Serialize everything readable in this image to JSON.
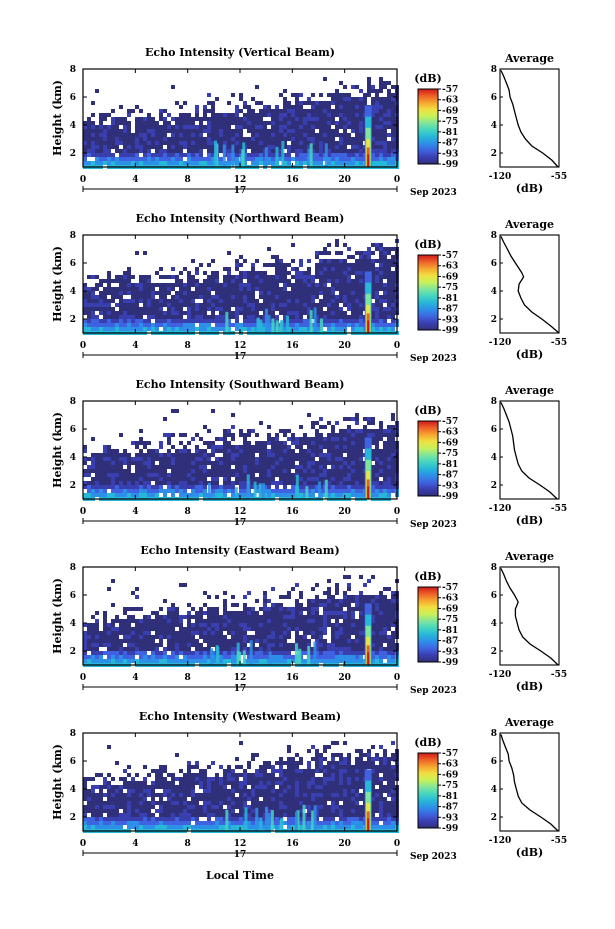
{
  "figure": {
    "xlabel": "Local Time",
    "date_day": "17",
    "month_year": "Sep 2023",
    "colorbar_unit": "(dB)",
    "profile_title": "Average",
    "profile_xlabel": "(dB)"
  },
  "colormap": [
    "#30307a",
    "#3a3fb0",
    "#3f63e0",
    "#2e8fe8",
    "#27b7d8",
    "#45d5c0",
    "#7fe59a",
    "#c8f05a",
    "#f0e040",
    "#f6a630",
    "#ee6028",
    "#cc1a1a"
  ],
  "chart_data": [
    {
      "type": "heatmap",
      "title": "Echo Intensity (Vertical Beam)",
      "ylabel": "Height (km)",
      "xlim": [
        0,
        24
      ],
      "ylim": [
        1,
        8
      ],
      "x_ticks": [
        "0",
        "4",
        "8",
        "12",
        "16",
        "20",
        "0"
      ],
      "y_ticks": [
        "2",
        "4",
        "6",
        "8"
      ],
      "colorbar": {
        "unit": "(dB)",
        "range": [
          -99,
          -57
        ],
        "ticks": [
          "-57",
          "-63",
          "-69",
          "-75",
          "-81",
          "-87",
          "-93",
          "-99"
        ]
      },
      "description_values": {
        "echo_top_km_start": 4.0,
        "echo_top_km_end": 5.8,
        "convective_column_hour": 21.8
      },
      "profile": {
        "title": "Average",
        "xlabel": "(dB)",
        "xlim": [
          -120,
          -55
        ],
        "x_ticks": [
          "-120",
          "-55"
        ],
        "y_ticks": [
          "2",
          "4",
          "6",
          "8"
        ],
        "height_km": [
          1.0,
          1.5,
          2.0,
          2.5,
          3.0,
          3.5,
          4.0,
          4.5,
          5.0,
          5.5,
          6.0,
          6.5,
          7.0,
          7.5,
          7.9
        ],
        "intensity_db": [
          -56,
          -63,
          -73,
          -85,
          -92,
          -97,
          -100,
          -102,
          -104,
          -106,
          -109,
          -110,
          -113,
          -116,
          -119
        ]
      }
    },
    {
      "type": "heatmap",
      "title": "Echo Intensity (Northward Beam)",
      "ylabel": "Height (km)",
      "xlim": [
        0,
        24
      ],
      "ylim": [
        1,
        8
      ],
      "x_ticks": [
        "0",
        "4",
        "8",
        "12",
        "16",
        "20",
        "0"
      ],
      "y_ticks": [
        "2",
        "4",
        "6",
        "8"
      ],
      "colorbar": {
        "unit": "(dB)",
        "range": [
          -99,
          -57
        ],
        "ticks": [
          "-57",
          "-63",
          "-69",
          "-75",
          "-81",
          "-87",
          "-93",
          "-99"
        ]
      },
      "description_values": {
        "echo_top_km_start": 4.2,
        "echo_top_km_end": 6.0,
        "convective_column_hour": 21.8
      },
      "profile": {
        "title": "Average",
        "xlabel": "(dB)",
        "xlim": [
          -120,
          -55
        ],
        "x_ticks": [
          "-120",
          "-55"
        ],
        "y_ticks": [
          "2",
          "4",
          "6",
          "8"
        ],
        "height_km": [
          1.0,
          1.5,
          2.0,
          2.5,
          3.0,
          3.5,
          4.0,
          4.5,
          5.0,
          5.3,
          5.6,
          6.0,
          6.5,
          7.0,
          7.5,
          7.9
        ],
        "intensity_db": [
          -55,
          -64,
          -74,
          -85,
          -93,
          -97,
          -100,
          -99,
          -94,
          -96,
          -99,
          -103,
          -108,
          -112,
          -116,
          -119
        ]
      }
    },
    {
      "type": "heatmap",
      "title": "Echo Intensity (Southward Beam)",
      "ylabel": "Height (km)",
      "xlim": [
        0,
        24
      ],
      "ylim": [
        1,
        8
      ],
      "x_ticks": [
        "0",
        "4",
        "8",
        "12",
        "16",
        "20",
        "0"
      ],
      "y_ticks": [
        "2",
        "4",
        "6",
        "8"
      ],
      "colorbar": {
        "unit": "(dB)",
        "range": [
          -99,
          -57
        ],
        "ticks": [
          "-57",
          "-63",
          "-69",
          "-75",
          "-81",
          "-87",
          "-93",
          "-99"
        ]
      },
      "description_values": {
        "echo_top_km_start": 4.0,
        "echo_top_km_end": 5.8,
        "convective_column_hour": 21.8
      },
      "profile": {
        "title": "Average",
        "xlabel": "(dB)",
        "xlim": [
          -120,
          -55
        ],
        "x_ticks": [
          "-120",
          "-55"
        ],
        "y_ticks": [
          "2",
          "4",
          "6",
          "8"
        ],
        "height_km": [
          1.0,
          1.5,
          2.0,
          2.5,
          3.0,
          3.5,
          4.0,
          4.5,
          5.0,
          5.5,
          6.0,
          6.5,
          7.0,
          7.5,
          7.9
        ],
        "intensity_db": [
          -57,
          -65,
          -76,
          -88,
          -96,
          -100,
          -102,
          -104,
          -105,
          -106,
          -108,
          -110,
          -113,
          -116,
          -119
        ]
      }
    },
    {
      "type": "heatmap",
      "title": "Echo Intensity (Eastward Beam)",
      "ylabel": "Height (km)",
      "xlim": [
        0,
        24
      ],
      "ylim": [
        1,
        8
      ],
      "x_ticks": [
        "0",
        "4",
        "8",
        "12",
        "16",
        "20",
        "0"
      ],
      "y_ticks": [
        "2",
        "4",
        "6",
        "8"
      ],
      "colorbar": {
        "unit": "(dB)",
        "range": [
          -99,
          -57
        ],
        "ticks": [
          "-57",
          "-63",
          "-69",
          "-75",
          "-81",
          "-87",
          "-93",
          "-99"
        ]
      },
      "description_values": {
        "echo_top_km_start": 4.0,
        "echo_top_km_end": 5.8,
        "convective_column_hour": 21.8
      },
      "profile": {
        "title": "Average",
        "xlabel": "(dB)",
        "xlim": [
          -120,
          -55
        ],
        "x_ticks": [
          "-120",
          "-55"
        ],
        "y_ticks": [
          "2",
          "4",
          "6",
          "8"
        ],
        "height_km": [
          1.0,
          1.5,
          2.0,
          2.5,
          3.0,
          3.5,
          4.0,
          4.5,
          5.0,
          5.5,
          6.0,
          6.5,
          7.0,
          7.5,
          7.9
        ],
        "intensity_db": [
          -56,
          -64,
          -75,
          -87,
          -95,
          -99,
          -101,
          -103,
          -103,
          -100,
          -104,
          -109,
          -113,
          -116,
          -119
        ]
      }
    },
    {
      "type": "heatmap",
      "title": "Echo Intensity (Westward Beam)",
      "ylabel": "Height (km)",
      "xlim": [
        0,
        24
      ],
      "ylim": [
        1,
        8
      ],
      "x_ticks": [
        "0",
        "4",
        "8",
        "12",
        "16",
        "20",
        "0"
      ],
      "y_ticks": [
        "2",
        "4",
        "6",
        "8"
      ],
      "colorbar": {
        "unit": "(dB)",
        "range": [
          -99,
          -57
        ],
        "ticks": [
          "-57",
          "-63",
          "-69",
          "-75",
          "-81",
          "-87",
          "-93",
          "-99"
        ]
      },
      "description_values": {
        "echo_top_km_start": 4.2,
        "echo_top_km_end": 6.0,
        "convective_column_hour": 21.8
      },
      "profile": {
        "title": "Average",
        "xlabel": "(dB)",
        "xlim": [
          -120,
          -55
        ],
        "x_ticks": [
          "-120",
          "-55"
        ],
        "y_ticks": [
          "2",
          "4",
          "6",
          "8"
        ],
        "height_km": [
          1.0,
          1.5,
          2.0,
          2.5,
          3.0,
          3.5,
          4.0,
          4.5,
          5.0,
          5.5,
          6.0,
          6.5,
          7.0,
          7.5,
          7.9
        ],
        "intensity_db": [
          -56,
          -64,
          -75,
          -87,
          -96,
          -100,
          -102,
          -104,
          -105,
          -107,
          -110,
          -111,
          -114,
          -117,
          -119
        ]
      }
    }
  ]
}
